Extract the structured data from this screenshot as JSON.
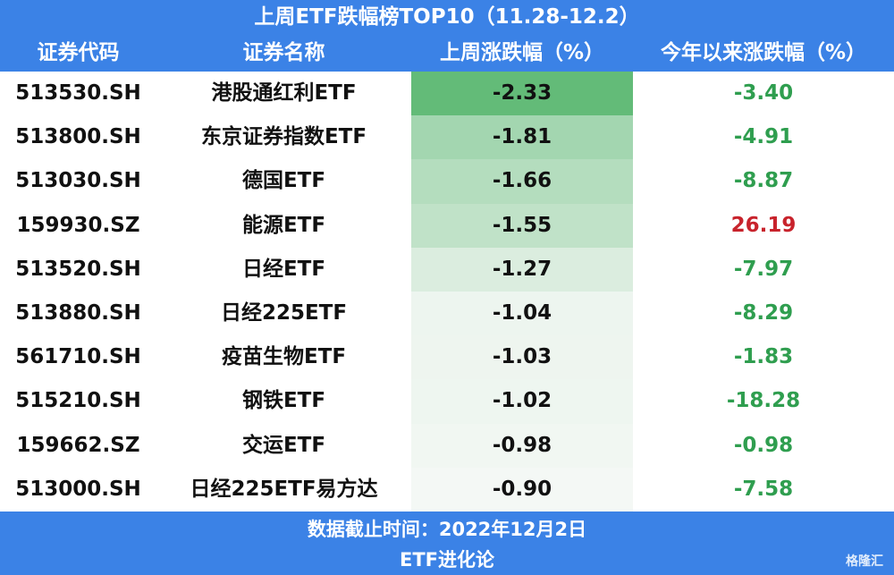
{
  "header": {
    "title": "上周ETF跌幅榜TOP10（11.28-12.2）"
  },
  "table": {
    "columns": [
      "证券代码",
      "证券名称",
      "上周涨跌幅（%）",
      "今年以来涨跌幅（%）"
    ],
    "rows": [
      [
        "513530.SH",
        "港股通红利ETF",
        "-2.33",
        "-3.40"
      ],
      [
        "513800.SH",
        "东京证券指数ETF",
        "-1.81",
        "-4.91"
      ],
      [
        "513030.SH",
        "德国ETF",
        "-1.66",
        "-8.87"
      ],
      [
        "159930.SZ",
        "能源ETF",
        "-1.55",
        "26.19"
      ],
      [
        "513520.SH",
        "日经ETF",
        "-1.27",
        "-7.97"
      ],
      [
        "513880.SH",
        "日经225ETF",
        "-1.04",
        "-8.29"
      ],
      [
        "561710.SH",
        "疫苗生物ETF",
        "-1.03",
        "-1.83"
      ],
      [
        "515210.SH",
        "钢铁ETF",
        "-1.02",
        "-18.28"
      ],
      [
        "159662.SZ",
        "交运ETF",
        "-0.98",
        "-0.98"
      ],
      [
        "513000.SH",
        "日经225ETF易方达",
        "-0.90",
        "-7.58"
      ]
    ]
  },
  "footer": {
    "note": "数据截止时间：2022年12月2日",
    "source": "ETF进化论",
    "watermark": "格隆汇"
  }
}
